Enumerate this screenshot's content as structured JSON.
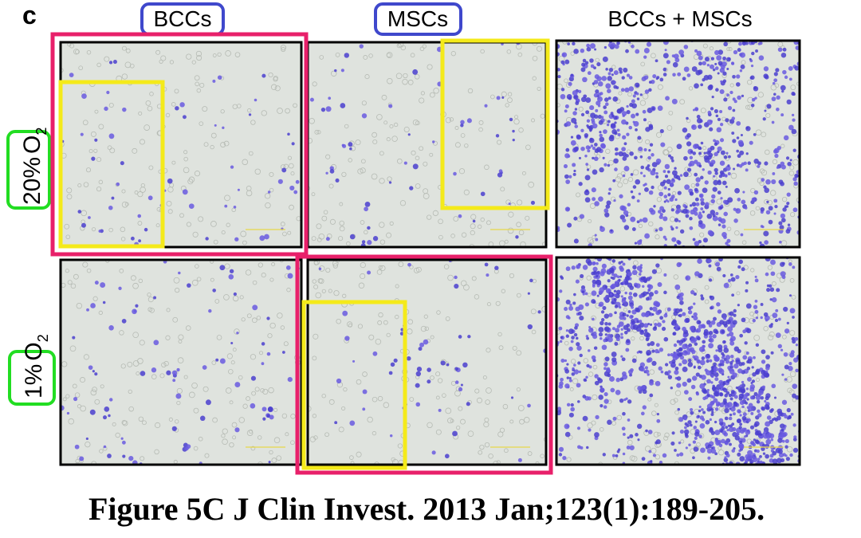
{
  "panel_label": "c",
  "columns": [
    "BCCs",
    "MSCs",
    "BCCs + MSCs"
  ],
  "rows": [
    {
      "percent": "20%",
      "gas": "O",
      "subscript": "2"
    },
    {
      "percent": "1%",
      "gas": "O",
      "subscript": "2"
    }
  ],
  "caption": "Figure 5C J Clin Invest. 2013 Jan;123(1):189-205."
}
